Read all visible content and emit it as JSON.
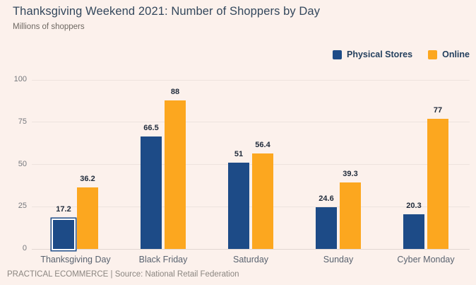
{
  "header": {
    "title": "Thanksgiving Weekend 2021: Number of Shoppers by Day",
    "subtitle": "Millions of shoppers"
  },
  "chart_data": {
    "type": "bar",
    "title": "Thanksgiving Weekend 2021: Number of Shoppers by Day",
    "subtitle": "Millions of shoppers",
    "categories": [
      "Thanksgiving Day",
      "Black Friday",
      "Saturday",
      "Sunday",
      "Cyber Monday"
    ],
    "series": [
      {
        "name": "Physical Stores",
        "color": "#1D4B87",
        "values": [
          17.2,
          66.5,
          51,
          24.6,
          20.3
        ]
      },
      {
        "name": "Online",
        "color": "#FCA71F",
        "values": [
          36.2,
          88,
          56.4,
          39.3,
          77
        ]
      }
    ],
    "xlabel": "",
    "ylabel": "Millions of shoppers",
    "ylim": [
      0,
      100
    ],
    "yticks": [
      0,
      25,
      50,
      75,
      100
    ],
    "grid": true,
    "legend_position": "top-right",
    "highlighted_bar": {
      "series": "Physical Stores",
      "category": "Thanksgiving Day"
    }
  },
  "footer": {
    "text": "PRACTICAL ECOMMERCE | Source: National Retail Federation"
  },
  "colors": {
    "background": "#FCF1EC",
    "physical_stores": "#1D4B87",
    "online": "#FCA71F",
    "title_text": "#33475C",
    "subtitle_text": "#6E6862",
    "axis_text": "#75787D",
    "category_text": "#5A6370",
    "value_label_text": "#1F2A3A",
    "legend_text": "#24405E",
    "gridline": "#EDE3DE",
    "footer_text": "#8B8681",
    "highlight_ring": "#FFFFFF"
  }
}
